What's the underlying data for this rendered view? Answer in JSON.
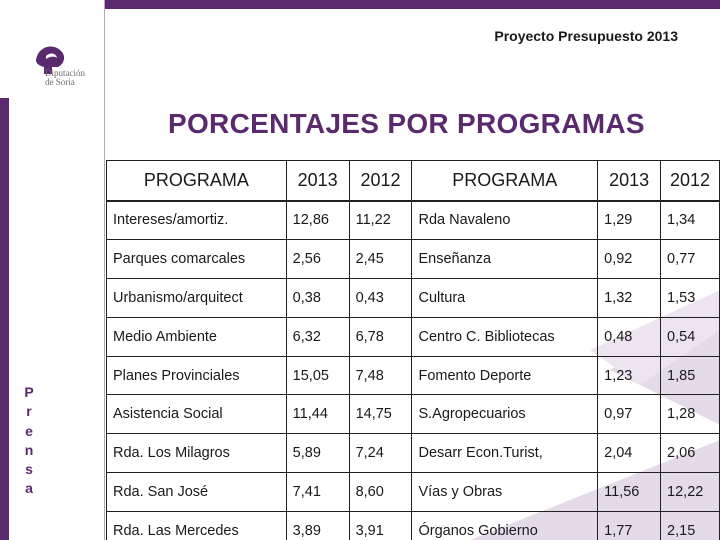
{
  "header": {
    "title": "Proyecto Presupuesto 2013"
  },
  "logo": {
    "line1": "Diputación",
    "line2": "de Soria"
  },
  "page_title": "PORCENTAJES POR PROGRAMAS",
  "side_word": [
    "P",
    "r",
    "e",
    "n",
    "s",
    "a"
  ],
  "colors": {
    "brand": "#5b2a6e",
    "text": "#1a1a1a",
    "decor": "#e4dbe8"
  },
  "table": {
    "headers": [
      "PROGRAMA",
      "2013",
      "2012",
      "PROGRAMA",
      "2013",
      "2012"
    ],
    "rows": [
      [
        "Intereses/amortiz.",
        "12,86",
        "11,22",
        "Rda Navaleno",
        "1,29",
        "1,34"
      ],
      [
        "Parques comarcales",
        "2,56",
        "2,45",
        "Enseñanza",
        "0,92",
        "0,77"
      ],
      [
        "Urbanismo/arquitect",
        "0,38",
        "0,43",
        "Cultura",
        "1,32",
        "1,53"
      ],
      [
        "Medio Ambiente",
        "6,32",
        "6,78",
        "Centro C. Bibliotecas",
        "0,48",
        "0,54"
      ],
      [
        "Planes Provinciales",
        "15,05",
        "7,48",
        "Fomento Deporte",
        "1,23",
        "1,85"
      ],
      [
        "Asistencia Social",
        "11,44",
        "14,75",
        "S.Agropecuarios",
        "0,97",
        "1,28"
      ],
      [
        "Rda. Los Milagros",
        "5,89",
        "7,24",
        "Desarr Econ.Turist,",
        "2,04",
        "2,06"
      ],
      [
        "Rda. San José",
        "7,41",
        "8,60",
        "Vías y Obras",
        "11,56",
        "12,22"
      ],
      [
        "Rda. Las Mercedes",
        "3,89",
        "3,91",
        "Órganos Gobierno",
        "1,77",
        "2,15"
      ]
    ]
  }
}
